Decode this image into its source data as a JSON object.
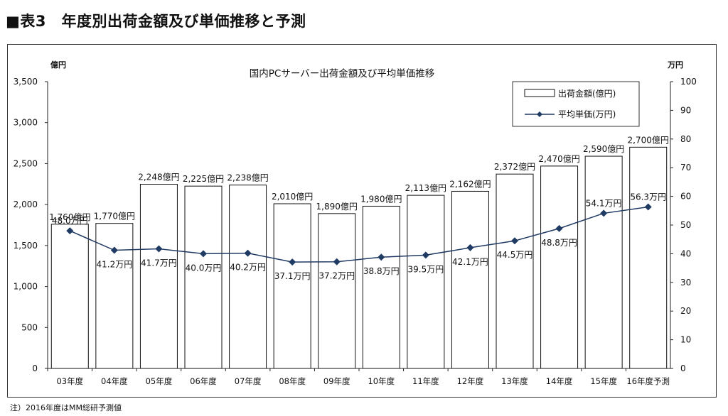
{
  "header": {
    "title": "■表3　年度別出荷金額及び単価推移と予測"
  },
  "note": "注）2016年度はMM総研予測値",
  "chart_data": {
    "type": "bar+line",
    "title": "国内PCサーバー出荷金額及び平均単価推移",
    "left_axis": {
      "unit": "億円",
      "ylim": [
        0,
        3500
      ],
      "ticks": [
        0,
        500,
        1000,
        1500,
        2000,
        2500,
        3000,
        3500
      ],
      "tick_labels": [
        "0",
        "500",
        "1,000",
        "1,500",
        "2,000",
        "2,500",
        "3,000",
        "3,500"
      ]
    },
    "right_axis": {
      "unit": "万円",
      "ylim": [
        0,
        100
      ],
      "ticks": [
        0,
        10,
        20,
        30,
        40,
        50,
        60,
        70,
        80,
        90,
        100
      ],
      "tick_labels": [
        "0",
        "10",
        "20",
        "30",
        "40",
        "50",
        "60",
        "70",
        "80",
        "90",
        "100"
      ]
    },
    "categories": [
      "03年度",
      "04年度",
      "05年度",
      "06年度",
      "07年度",
      "08年度",
      "09年度",
      "10年度",
      "11年度",
      "12年度",
      "13年度",
      "14年度",
      "15年度",
      "16年度予測"
    ],
    "series": [
      {
        "name": "出荷金額(億円)",
        "kind": "bar",
        "axis": "left",
        "color": "#ffffff",
        "values": [
          1760,
          1770,
          2248,
          2225,
          2238,
          2010,
          1890,
          1980,
          2113,
          2162,
          2372,
          2470,
          2590,
          2700
        ],
        "labels": [
          "1,760億円",
          "1,770億円",
          "2,248億円",
          "2,225億円",
          "2,238億円",
          "2,010億円",
          "1,890億円",
          "1,980億円",
          "2,113億円",
          "2,162億円",
          "2,372億円",
          "2,470億円",
          "2,590億円",
          "2,700億円"
        ]
      },
      {
        "name": "平均単価(万円)",
        "kind": "line",
        "axis": "right",
        "color": "#1f3a63",
        "values": [
          48.0,
          41.2,
          41.7,
          40.0,
          40.2,
          37.1,
          37.2,
          38.8,
          39.5,
          42.1,
          44.5,
          48.8,
          54.1,
          56.3
        ],
        "labels": [
          "48.0万円",
          "41.2万円",
          "41.7万円",
          "40.0万円",
          "40.2万円",
          "37.1万円",
          "37.2万円",
          "38.8万円",
          "39.5万円",
          "42.1万円",
          "44.5万円",
          "48.8万円",
          "54.1万円",
          "56.3万円"
        ]
      }
    ],
    "legend": "top-right",
    "grid": false
  }
}
